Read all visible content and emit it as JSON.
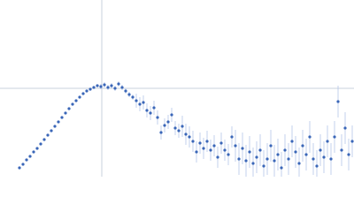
{
  "chart_data": {
    "type": "scatter",
    "x": [
      22,
      26,
      30,
      34,
      38,
      42,
      46,
      50,
      54,
      58,
      62,
      66,
      70,
      74,
      78,
      82,
      86,
      90,
      94,
      98,
      102,
      106,
      110,
      114,
      118,
      122,
      126,
      130,
      134,
      138,
      142,
      146,
      150,
      154,
      158,
      162,
      166,
      170,
      174,
      178,
      182,
      186,
      190,
      194,
      198,
      202,
      206,
      210,
      214,
      218,
      222,
      226,
      230,
      234,
      238,
      242,
      246,
      250,
      254,
      258,
      262,
      266,
      270,
      274,
      278,
      282,
      286,
      290,
      294,
      298,
      302,
      306,
      310,
      314,
      318,
      322,
      326,
      330,
      334,
      338,
      342,
      346,
      350,
      354,
      358,
      362,
      366,
      370,
      374,
      378,
      382,
      386,
      390,
      394,
      398
    ],
    "series": [
      {
        "color": "#3a66b8",
        "error_color": "#b4c6ea",
        "values": [
          10,
          14,
          19,
          23,
          28,
          32,
          37,
          42,
          47,
          52,
          57,
          62,
          67,
          72,
          77,
          82,
          86,
          90,
          94,
          97,
          99,
          101,
          103,
          102,
          104,
          101,
          103,
          100,
          105,
          101,
          97,
          93,
          90,
          86,
          82,
          84,
          75,
          72,
          78,
          67,
          50,
          58,
          62,
          70,
          55,
          52,
          57,
          48,
          45,
          40,
          28,
          38,
          32,
          40,
          30,
          35,
          22,
          38,
          30,
          25,
          45,
          35,
          20,
          32,
          18,
          28,
          15,
          22,
          30,
          12,
          20,
          35,
          18,
          25,
          10,
          30,
          20,
          40,
          28,
          15,
          35,
          25,
          45,
          20,
          12,
          30,
          22,
          40,
          20,
          45,
          85,
          30,
          55,
          25,
          40
        ],
        "errors": [
          1,
          1,
          1,
          1,
          1,
          1,
          1,
          1,
          1,
          1,
          1,
          1,
          1,
          1,
          1,
          1,
          1,
          1,
          1,
          1,
          1,
          1,
          1,
          3,
          3,
          3,
          3,
          3,
          3,
          3,
          3,
          3,
          3,
          8,
          8,
          8,
          8,
          8,
          8,
          8,
          8,
          8,
          8,
          8,
          8,
          8,
          12,
          12,
          12,
          12,
          12,
          12,
          12,
          12,
          12,
          12,
          12,
          12,
          12,
          12,
          12,
          18,
          18,
          18,
          18,
          18,
          18,
          18,
          18,
          18,
          18,
          18,
          18,
          18,
          18,
          18,
          18,
          18,
          18,
          18,
          18,
          18,
          18,
          18,
          18,
          18,
          18,
          18,
          18,
          18,
          18,
          18,
          18,
          18,
          18
        ]
      }
    ],
    "xlim": [
      0,
      400
    ],
    "ylim": [
      0,
      200
    ],
    "reference_lines": {
      "x": 115,
      "y": 100,
      "color": "#c8d0dc"
    }
  }
}
